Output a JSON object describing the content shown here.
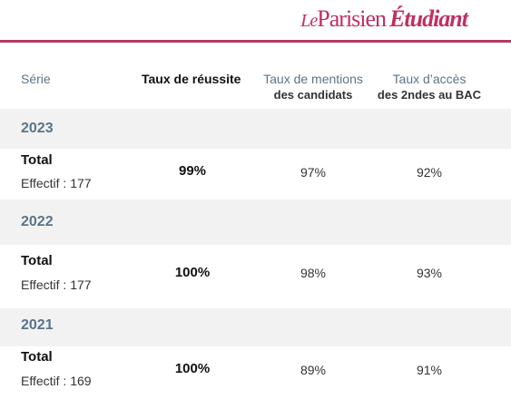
{
  "brand": {
    "le": "Le",
    "parisien": "Parisien",
    "etudiant": "Étudiant"
  },
  "columns": {
    "serie": "Série",
    "taux": "Taux de réussite",
    "mentions_line1": "Taux de mentions",
    "mentions_line2": "des candidats",
    "acces_line1": "Taux d’accès",
    "acces_line2": "des 2ndes au BAC"
  },
  "rows": [
    {
      "year": "2023",
      "label": "Total",
      "effectif": "Effectif : 177",
      "taux": "99%",
      "mentions": "97%",
      "acces": "92%"
    },
    {
      "year": "2022",
      "label": "Total",
      "effectif": "Effectif : 177",
      "taux": "100%",
      "mentions": "98%",
      "acces": "93%"
    },
    {
      "year": "2021",
      "label": "Total",
      "effectif": "Effectif : 169",
      "taux": "100%",
      "mentions": "89%",
      "acces": "91%"
    }
  ]
}
